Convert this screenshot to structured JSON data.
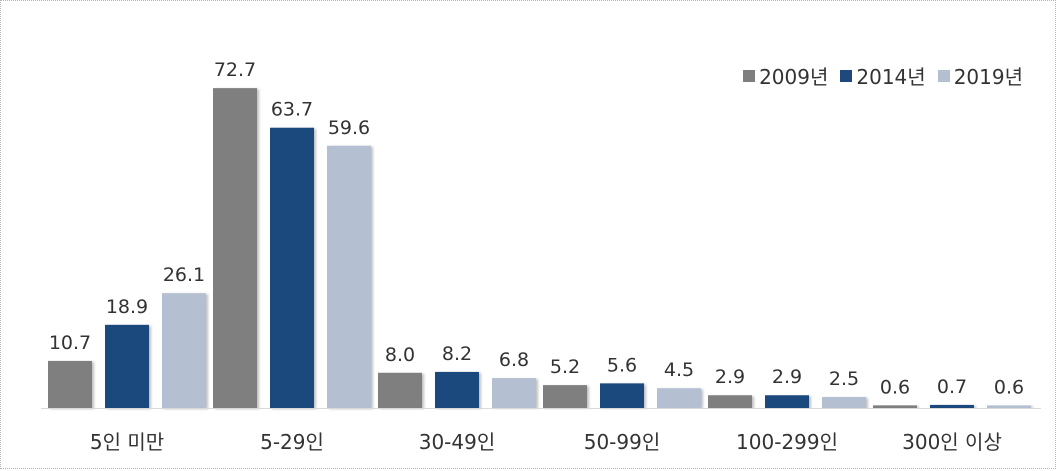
{
  "chart_data": {
    "type": "bar",
    "categories": [
      "5인 미만",
      "5-29인",
      "30-49인",
      "50-99인",
      "100-299인",
      "300인 이상"
    ],
    "series": [
      {
        "name": "2009년",
        "color": "#7f7f7f",
        "values": [
          10.7,
          72.7,
          8.0,
          5.2,
          2.9,
          0.6
        ],
        "labels": [
          "10.7",
          "72.7",
          "8.0",
          "5.2",
          "2.9",
          "0.6"
        ]
      },
      {
        "name": "2014년",
        "color": "#1f497d",
        "values": [
          18.9,
          63.7,
          8.2,
          5.6,
          2.9,
          0.7
        ],
        "labels": [
          "18.9",
          "63.7",
          "8.2",
          "5.6",
          "2.9",
          "0.7"
        ]
      },
      {
        "name": "2019년",
        "color": "#b4bfd1",
        "values": [
          26.1,
          59.6,
          6.8,
          4.5,
          2.5,
          0.6
        ],
        "labels": [
          "26.1",
          "59.6",
          "6.8",
          "4.5",
          "2.5",
          "0.6"
        ]
      }
    ],
    "ylim": [
      0,
      80
    ],
    "grid": false,
    "legend_position": "top-right",
    "axis_color": "#d9d9d9"
  }
}
